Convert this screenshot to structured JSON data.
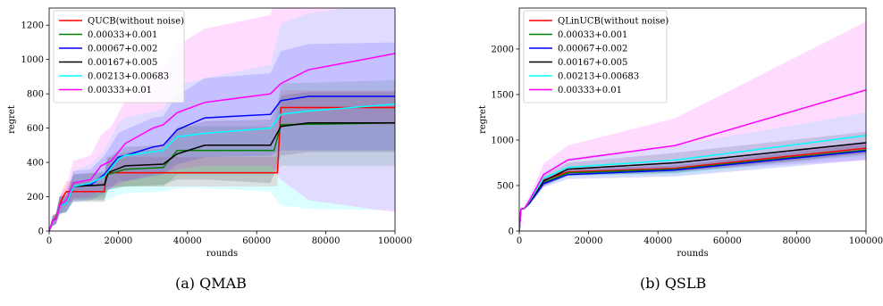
{
  "captions": [
    "(a) QMAB",
    "(b) QSLB"
  ],
  "chart_data": [
    {
      "type": "line",
      "xlabel": "rounds",
      "ylabel": "regret",
      "xlim": [
        0,
        100000
      ],
      "ylim": [
        0,
        1300
      ],
      "xticks": [
        0,
        20000,
        40000,
        60000,
        80000,
        100000
      ],
      "yticks": [
        0,
        200,
        400,
        600,
        800,
        1000,
        1200
      ],
      "legend_position": "top-left",
      "series": [
        {
          "name": "QUCB(without noise)",
          "color": "#ff0000",
          "x": [
            0,
            1000,
            2000,
            3000,
            4000,
            5000,
            6000,
            7000,
            16000,
            16500,
            66000,
            67000,
            100000
          ],
          "y": [
            0,
            60,
            80,
            150,
            200,
            230,
            230,
            230,
            230,
            340,
            340,
            720,
            720
          ],
          "lower": [
            0,
            30,
            50,
            100,
            150,
            170,
            170,
            170,
            170,
            260,
            260,
            620,
            620
          ],
          "upper": [
            0,
            90,
            110,
            200,
            250,
            290,
            290,
            290,
            290,
            430,
            430,
            820,
            820
          ]
        },
        {
          "name": "0.00033+0.001",
          "color": "#008000",
          "x": [
            0,
            1000,
            2000,
            3000,
            5000,
            7000,
            12000,
            16000,
            17000,
            22000,
            33000,
            37000,
            65000,
            67000,
            100000
          ],
          "y": [
            0,
            60,
            70,
            150,
            160,
            260,
            265,
            270,
            330,
            360,
            370,
            470,
            470,
            620,
            630
          ],
          "lower": [
            0,
            30,
            40,
            100,
            110,
            190,
            190,
            190,
            240,
            260,
            260,
            330,
            330,
            380,
            380
          ],
          "upper": [
            0,
            90,
            100,
            200,
            210,
            330,
            340,
            350,
            420,
            460,
            480,
            610,
            610,
            860,
            880
          ]
        },
        {
          "name": "0.00067+0.002",
          "color": "#0000ff",
          "x": [
            0,
            1000,
            2000,
            3000,
            5000,
            7000,
            12000,
            16000,
            20000,
            22000,
            30000,
            33000,
            37000,
            45000,
            64000,
            67000,
            75000,
            100000
          ],
          "y": [
            0,
            60,
            70,
            150,
            160,
            260,
            270,
            330,
            430,
            440,
            490,
            500,
            590,
            660,
            680,
            760,
            785,
            785
          ],
          "lower": [
            0,
            30,
            40,
            100,
            110,
            170,
            180,
            220,
            290,
            290,
            320,
            330,
            390,
            430,
            440,
            470,
            470,
            470
          ],
          "upper": [
            0,
            90,
            100,
            200,
            210,
            350,
            360,
            440,
            570,
            590,
            660,
            670,
            790,
            890,
            920,
            1050,
            1090,
            1100
          ]
        },
        {
          "name": "0.00167+0.005",
          "color": "#000000",
          "x": [
            0,
            1000,
            2000,
            3000,
            5000,
            7000,
            16000,
            17000,
            22000,
            33000,
            37000,
            45000,
            64000,
            67000,
            75000,
            100000
          ],
          "y": [
            0,
            60,
            70,
            150,
            160,
            260,
            270,
            340,
            380,
            390,
            450,
            500,
            500,
            610,
            630,
            630
          ],
          "lower": [
            0,
            30,
            40,
            100,
            110,
            180,
            180,
            240,
            260,
            270,
            300,
            300,
            280,
            440,
            460,
            460
          ],
          "upper": [
            0,
            90,
            100,
            200,
            210,
            330,
            340,
            430,
            490,
            500,
            590,
            640,
            650,
            790,
            810,
            810
          ]
        },
        {
          "name": "0.00213+0.00683",
          "color": "#00ffff",
          "x": [
            0,
            1000,
            2000,
            3000,
            5000,
            7000,
            12000,
            16000,
            20000,
            22000,
            33000,
            37000,
            45000,
            64000,
            67000,
            75000,
            100000
          ],
          "y": [
            0,
            60,
            70,
            150,
            160,
            260,
            280,
            320,
            420,
            440,
            470,
            550,
            570,
            600,
            680,
            700,
            740
          ],
          "lower": [
            0,
            30,
            40,
            100,
            110,
            170,
            170,
            170,
            210,
            220,
            230,
            250,
            250,
            230,
            150,
            130,
            120
          ],
          "upper": [
            0,
            90,
            100,
            200,
            210,
            350,
            390,
            470,
            630,
            660,
            710,
            850,
            890,
            970,
            1210,
            1270,
            1340
          ]
        },
        {
          "name": "0.00333+0.01",
          "color": "#ff00ff",
          "x": [
            0,
            1000,
            2000,
            3000,
            5000,
            7000,
            12000,
            15000,
            18000,
            22000,
            30000,
            33000,
            37000,
            45000,
            64000,
            66000,
            67000,
            75000,
            100000
          ],
          "y": [
            0,
            60,
            70,
            150,
            180,
            280,
            300,
            380,
            410,
            510,
            600,
            620,
            690,
            750,
            800,
            840,
            860,
            940,
            1035
          ],
          "lower": [
            0,
            30,
            40,
            100,
            120,
            190,
            200,
            240,
            250,
            290,
            330,
            340,
            360,
            380,
            380,
            330,
            300,
            180,
            110
          ],
          "upper": [
            0,
            90,
            100,
            200,
            260,
            410,
            440,
            560,
            610,
            760,
            920,
            960,
            1080,
            1180,
            1260,
            1400,
            1500,
            1600,
            1750
          ]
        }
      ]
    },
    {
      "type": "line",
      "xlabel": "rounds",
      "ylabel": "regret",
      "xlim": [
        0,
        100000
      ],
      "ylim": [
        0,
        2450
      ],
      "xticks": [
        0,
        20000,
        40000,
        60000,
        80000,
        100000
      ],
      "yticks": [
        0,
        500,
        1000,
        1500,
        2000
      ],
      "legend_position": "top-left",
      "series": [
        {
          "name": "QLinUCB(without noise)",
          "color": "#ff0000",
          "x": [
            0,
            500,
            1500,
            3000,
            7000,
            14000,
            45000,
            100000
          ],
          "y": [
            0,
            240,
            250,
            320,
            560,
            650,
            690,
            910
          ],
          "lower": [
            0,
            230,
            240,
            300,
            530,
            620,
            660,
            850
          ],
          "upper": [
            0,
            250,
            260,
            340,
            590,
            680,
            720,
            970
          ]
        },
        {
          "name": "0.00033+0.001",
          "color": "#008000",
          "x": [
            0,
            500,
            1500,
            3000,
            7000,
            14000,
            45000,
            100000
          ],
          "y": [
            0,
            240,
            250,
            310,
            530,
            640,
            680,
            890
          ],
          "lower": [
            0,
            230,
            240,
            290,
            500,
            610,
            640,
            830
          ],
          "upper": [
            0,
            250,
            260,
            330,
            560,
            670,
            720,
            950
          ]
        },
        {
          "name": "0.00067+0.002",
          "color": "#0000ff",
          "x": [
            0,
            500,
            1500,
            3000,
            7000,
            14000,
            45000,
            100000
          ],
          "y": [
            0,
            240,
            250,
            310,
            520,
            620,
            670,
            880
          ],
          "lower": [
            0,
            230,
            240,
            290,
            480,
            570,
            600,
            780
          ],
          "upper": [
            0,
            250,
            260,
            330,
            560,
            670,
            740,
            980
          ]
        },
        {
          "name": "0.00167+0.005",
          "color": "#000000",
          "x": [
            0,
            500,
            1500,
            3000,
            7000,
            14000,
            45000,
            100000
          ],
          "y": [
            0,
            240,
            250,
            320,
            550,
            680,
            750,
            970
          ],
          "lower": [
            0,
            230,
            240,
            290,
            490,
            610,
            640,
            850
          ],
          "upper": [
            0,
            250,
            260,
            350,
            610,
            750,
            860,
            1090
          ]
        },
        {
          "name": "0.00213+0.00683",
          "color": "#00ffff",
          "x": [
            0,
            500,
            1500,
            3000,
            7000,
            14000,
            45000,
            100000
          ],
          "y": [
            0,
            240,
            250,
            330,
            580,
            700,
            780,
            1050
          ],
          "lower": [
            0,
            230,
            240,
            290,
            510,
            600,
            620,
            800
          ],
          "upper": [
            0,
            250,
            260,
            370,
            650,
            800,
            940,
            1300
          ]
        },
        {
          "name": "0.00333+0.01",
          "color": "#ff00ff",
          "x": [
            0,
            500,
            1500,
            3000,
            7000,
            14000,
            45000,
            100000
          ],
          "y": [
            0,
            240,
            250,
            340,
            620,
            780,
            940,
            1550
          ],
          "lower": [
            0,
            230,
            240,
            290,
            500,
            620,
            660,
            780
          ],
          "upper": [
            0,
            250,
            260,
            390,
            740,
            940,
            1240,
            2300
          ]
        }
      ]
    }
  ]
}
